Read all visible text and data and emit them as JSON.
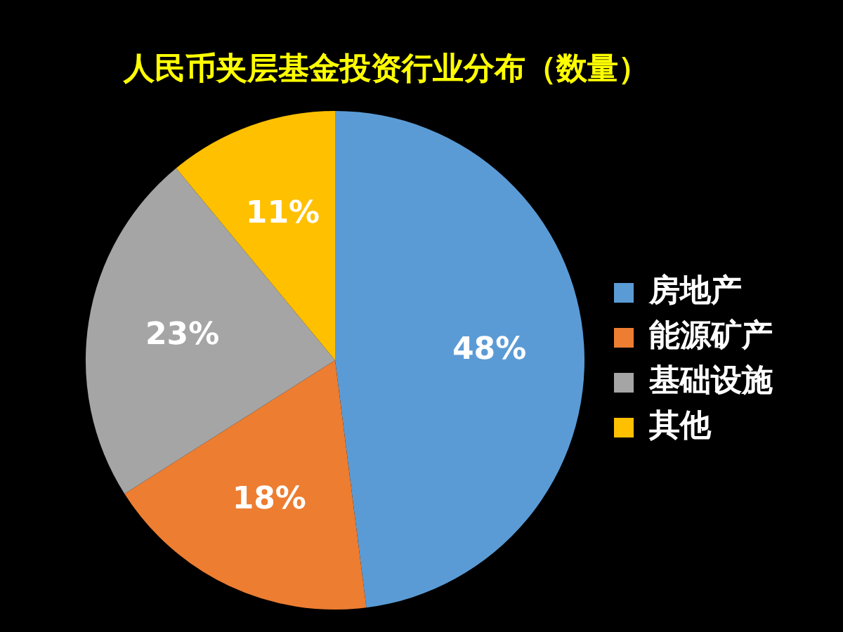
{
  "chart_data": {
    "type": "pie",
    "title": "人民币夹层基金投资行业分布（数量）",
    "categories": [
      "房地产",
      "能源矿产",
      "基础设施",
      "其他"
    ],
    "values": [
      48,
      18,
      23,
      11
    ],
    "value_labels": [
      "48%",
      "18%",
      "23%",
      "11%"
    ],
    "colors": [
      "#5b9bd5",
      "#ed7d31",
      "#a5a5a5",
      "#ffc000"
    ],
    "legend": "right"
  }
}
